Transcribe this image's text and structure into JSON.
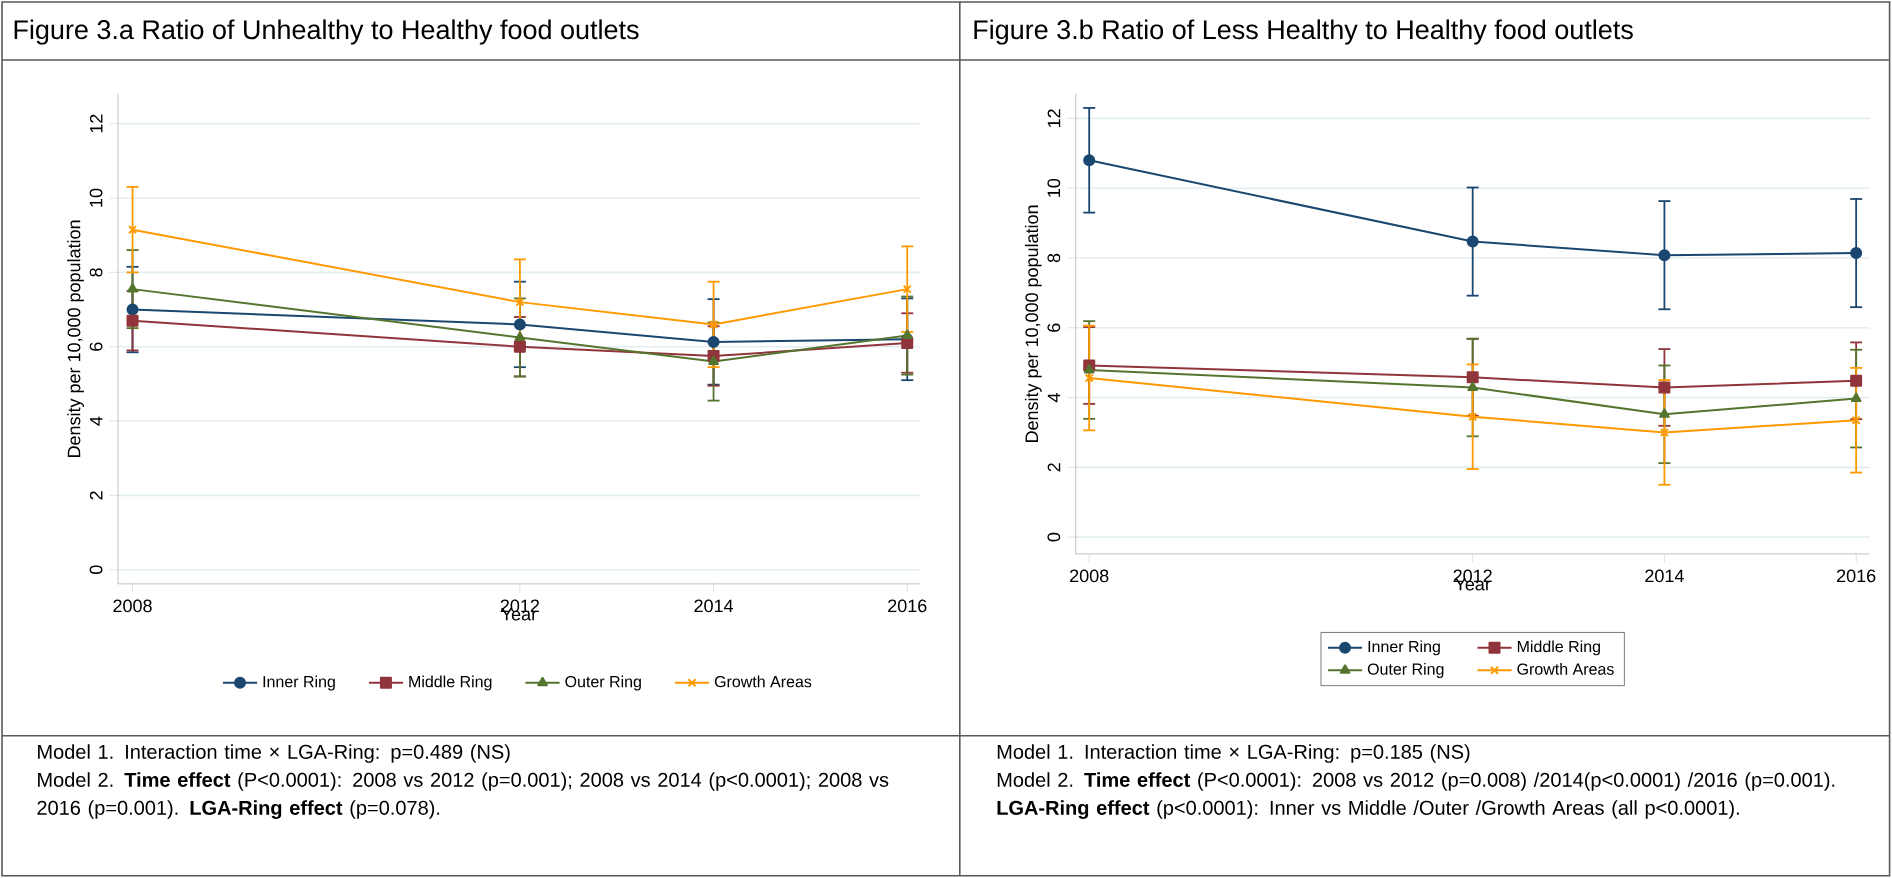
{
  "chart_data": [
    {
      "type": "line",
      "title": "Figure 3.a Ratio of Unhealthy to Healthy food outlets",
      "xlabel": "Year",
      "ylabel": "Density per 10,000 population",
      "x": [
        2008,
        2012,
        2014,
        2016
      ],
      "xlim": [
        2007.85,
        2016.13
      ],
      "xticks": [
        2008,
        2012,
        2014,
        2016
      ],
      "ylim": [
        -0.38,
        12.8
      ],
      "yticks": [
        0,
        2,
        4,
        6,
        8,
        10,
        12
      ],
      "grid": "y",
      "legend": "bottom",
      "series": [
        {
          "name": "Inner Ring",
          "color": "#1a476f",
          "marker": "circle",
          "values": [
            7.0,
            6.6,
            6.13,
            6.2
          ],
          "errors": [
            1.15,
            1.15,
            1.15,
            1.1
          ]
        },
        {
          "name": "Middle Ring",
          "color": "#90353b",
          "marker": "square",
          "values": [
            6.7,
            6.0,
            5.75,
            6.1
          ],
          "errors": [
            0.8,
            0.8,
            0.8,
            0.8
          ]
        },
        {
          "name": "Outer Ring",
          "color": "#55752f",
          "marker": "triangle",
          "values": [
            7.55,
            6.25,
            5.6,
            6.3
          ],
          "errors": [
            1.05,
            1.05,
            1.05,
            1.05
          ]
        },
        {
          "name": "Growth Areas",
          "color": "#ff9900",
          "marker": "cross",
          "values": [
            9.15,
            7.2,
            6.6,
            7.55
          ],
          "errors": [
            1.15,
            1.15,
            1.15,
            1.15
          ]
        }
      ],
      "annotations": [
        "Model 1. Interaction time × LGA-Ring: p=0.489 (NS)",
        "Model 2. **Time effect** (P<0.0001): 2008 vs 2012 (p=0.001); 2008 vs 2014 (p<0.0001); 2008 vs 2016 (p=0.001). **LGA-Ring effect** (p=0.078)."
      ]
    },
    {
      "type": "line",
      "title": "Figure 3.b Ratio of Less Healthy to Healthy food outlets",
      "xlabel": "Year",
      "ylabel": "Density per 10,000 population",
      "x": [
        2008,
        2012,
        2014,
        2016
      ],
      "xlim": [
        2007.86,
        2016.14
      ],
      "xticks": [
        2008,
        2012,
        2014,
        2016
      ],
      "ylim": [
        -0.48,
        12.7
      ],
      "yticks": [
        0,
        2,
        4,
        6,
        8,
        10,
        12
      ],
      "grid": "y",
      "legend": "bottom",
      "series": [
        {
          "name": "Inner Ring",
          "color": "#1a476f",
          "marker": "circle",
          "values": [
            10.8,
            8.47,
            8.08,
            8.14
          ],
          "errors": [
            1.5,
            1.55,
            1.55,
            1.55
          ]
        },
        {
          "name": "Middle Ring",
          "color": "#90353b",
          "marker": "square",
          "values": [
            4.92,
            4.58,
            4.29,
            4.48
          ],
          "errors": [
            1.1,
            1.1,
            1.1,
            1.1
          ]
        },
        {
          "name": "Outer Ring",
          "color": "#55752f",
          "marker": "triangle",
          "values": [
            4.79,
            4.29,
            3.52,
            3.97
          ],
          "errors": [
            1.4,
            1.4,
            1.4,
            1.4
          ]
        },
        {
          "name": "Growth Areas",
          "color": "#ff9900",
          "marker": "cross",
          "values": [
            4.56,
            3.45,
            3.0,
            3.35
          ],
          "errors": [
            1.5,
            1.5,
            1.5,
            1.5
          ]
        }
      ],
      "annotations": [
        "Model 1. Interaction time × LGA-Ring: p=0.185 (NS)",
        "Model 2. **Time effect** (P<0.0001): 2008 vs 2012 (p=0.008) /2014(p<0.0001) /2016 (p=0.001). **LGA-Ring effect** (p<0.0001): Inner vs Middle /Outer /Growth Areas (all p<0.0001)."
      ]
    }
  ]
}
